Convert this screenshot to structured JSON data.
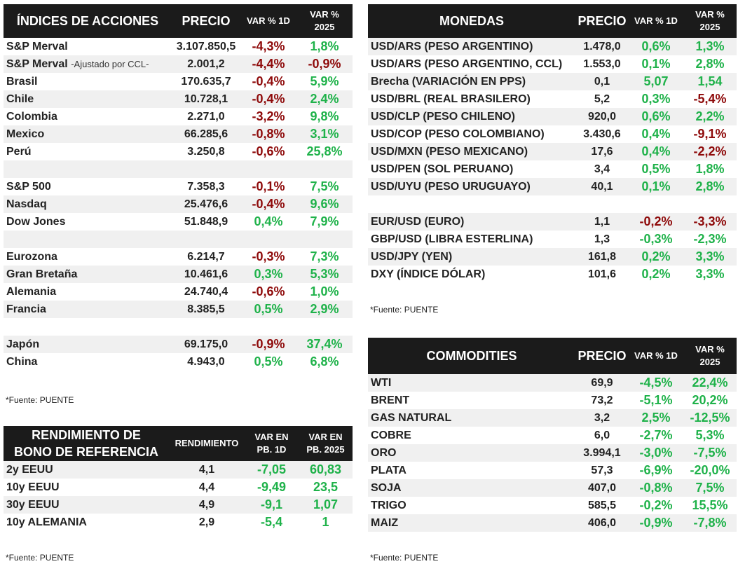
{
  "indices": {
    "headers": [
      "ÍNDICES DE ACCIONES",
      "PRECIO",
      "VAR % 1D",
      "VAR %",
      "2025"
    ],
    "rows": [
      {
        "name": "S&P Merval",
        "sub": "",
        "price": "3.107.850,5",
        "d1": "-4,3%",
        "d1c": "neg",
        "ytd": "1,8%",
        "ytdc": "pos",
        "alt": false
      },
      {
        "name": "S&P Merval",
        "sub": "-Ajustado por CCL-",
        "price": "2.001,2",
        "d1": "-4,4%",
        "d1c": "neg",
        "ytd": "-0,9%",
        "ytdc": "neg",
        "alt": true
      },
      {
        "name": "Brasil",
        "sub": "",
        "price": "170.635,7",
        "d1": "-0,4%",
        "d1c": "neg",
        "ytd": "5,9%",
        "ytdc": "pos",
        "alt": false
      },
      {
        "name": "Chile",
        "sub": "",
        "price": "10.728,1",
        "d1": "-0,4%",
        "d1c": "neg",
        "ytd": "2,4%",
        "ytdc": "pos",
        "alt": true
      },
      {
        "name": "Colombia",
        "sub": "",
        "price": "2.271,0",
        "d1": "-3,2%",
        "d1c": "neg",
        "ytd": "9,8%",
        "ytdc": "pos",
        "alt": false
      },
      {
        "name": "Mexico",
        "sub": "",
        "price": "66.285,6",
        "d1": "-0,8%",
        "d1c": "neg",
        "ytd": "3,1%",
        "ytdc": "pos",
        "alt": true
      },
      {
        "name": "Perú",
        "sub": "",
        "price": "3.250,8",
        "d1": "-0,6%",
        "d1c": "neg",
        "ytd": "25,8%",
        "ytdc": "pos",
        "alt": false
      },
      {
        "blank": true,
        "alt": true
      },
      {
        "name": "S&P 500",
        "sub": "",
        "price": "7.358,3",
        "d1": "-0,1%",
        "d1c": "neg",
        "ytd": "7,5%",
        "ytdc": "pos",
        "alt": false
      },
      {
        "name": "Nasdaq",
        "sub": "",
        "price": "25.476,6",
        "d1": "-0,4%",
        "d1c": "neg",
        "ytd": "9,6%",
        "ytdc": "pos",
        "alt": true
      },
      {
        "name": "Dow Jones",
        "sub": "",
        "price": "51.848,9",
        "d1": "0,4%",
        "d1c": "pos",
        "ytd": "7,9%",
        "ytdc": "pos",
        "alt": false
      },
      {
        "blank": true,
        "alt": true
      },
      {
        "name": "Eurozona",
        "sub": "",
        "price": "6.214,7",
        "d1": "-0,3%",
        "d1c": "neg",
        "ytd": "7,3%",
        "ytdc": "pos",
        "alt": false
      },
      {
        "name": "Gran Bretaña",
        "sub": "",
        "price": "10.461,6",
        "d1": "0,3%",
        "d1c": "pos",
        "ytd": "5,3%",
        "ytdc": "pos",
        "alt": true
      },
      {
        "name": "Alemania",
        "sub": "",
        "price": "24.740,4",
        "d1": "-0,6%",
        "d1c": "neg",
        "ytd": "1,0%",
        "ytdc": "pos",
        "alt": false
      },
      {
        "name": "Francia",
        "sub": "",
        "price": "8.385,5",
        "d1": "0,5%",
        "d1c": "pos",
        "ytd": "2,9%",
        "ytdc": "pos",
        "alt": true
      },
      {
        "blank": true,
        "alt": false
      },
      {
        "name": "Japón",
        "sub": "",
        "price": "69.175,0",
        "d1": "-0,9%",
        "d1c": "neg",
        "ytd": "37,4%",
        "ytdc": "pos",
        "alt": true
      },
      {
        "name": "China",
        "sub": "",
        "price": "4.943,0",
        "d1": "0,5%",
        "d1c": "pos",
        "ytd": "6,8%",
        "ytdc": "pos",
        "alt": false
      }
    ],
    "source": "*Fuente: PUENTE"
  },
  "bonds": {
    "headers": [
      "RENDIMIENTO DE",
      "BONO DE REFERENCIA",
      "RENDIMIENTO",
      "VAR EN",
      "PB. 1D",
      "VAR EN",
      "PB. 2025"
    ],
    "rows": [
      {
        "name": "2y EEUU",
        "yield": "4,1",
        "d1": "-7,05",
        "d1c": "pos",
        "ytd": "60,83",
        "ytdc": "pos",
        "alt": true
      },
      {
        "name": "10y EEUU",
        "yield": "4,4",
        "d1": "-9,49",
        "d1c": "pos",
        "ytd": "23,5",
        "ytdc": "pos",
        "alt": false
      },
      {
        "name": "30y EEUU",
        "yield": "4,9",
        "d1": "-9,1",
        "d1c": "pos",
        "ytd": "1,07",
        "ytdc": "pos",
        "alt": true
      },
      {
        "name": "10y ALEMANIA",
        "yield": "2,9",
        "d1": "-5,4",
        "d1c": "pos",
        "ytd": "1",
        "ytdc": "pos",
        "alt": false
      }
    ],
    "source": "*Fuente: PUENTE"
  },
  "currencies": {
    "headers": [
      "MONEDAS",
      "PRECIO",
      "VAR % 1D",
      "VAR %",
      "2025"
    ],
    "rows": [
      {
        "name": "USD/ARS (PESO ARGENTINO)",
        "price": "1.478,0",
        "d1": "0,6%",
        "d1c": "pos",
        "ytd": "1,3%",
        "ytdc": "pos",
        "alt": true
      },
      {
        "name": "USD/ARS (PESO ARGENTINO, CCL)",
        "price": "1.553,0",
        "d1": "0,1%",
        "d1c": "pos",
        "ytd": "2,8%",
        "ytdc": "pos",
        "alt": false
      },
      {
        "name": "Brecha (VARIACIÓN EN PPS)",
        "price": "0,1",
        "d1": "5,07",
        "d1c": "pos",
        "ytd": "1,54",
        "ytdc": "pos",
        "alt": true
      },
      {
        "name": "USD/BRL (REAL BRASILERO)",
        "price": "5,2",
        "d1": "0,3%",
        "d1c": "pos",
        "ytd": "-5,4%",
        "ytdc": "neg",
        "alt": false
      },
      {
        "name": "USD/CLP (PESO CHILENO)",
        "price": "920,0",
        "d1": "0,6%",
        "d1c": "pos",
        "ytd": "2,2%",
        "ytdc": "pos",
        "alt": true
      },
      {
        "name": "USD/COP (PESO COLOMBIANO)",
        "price": "3.430,6",
        "d1": "0,4%",
        "d1c": "pos",
        "ytd": "-9,1%",
        "ytdc": "neg",
        "alt": false
      },
      {
        "name": "USD/MXN (PESO MEXICANO)",
        "price": "17,6",
        "d1": "0,4%",
        "d1c": "pos",
        "ytd": "-2,2%",
        "ytdc": "neg",
        "alt": true
      },
      {
        "name": "USD/PEN (SOL PERUANO)",
        "price": "3,4",
        "d1": "0,5%",
        "d1c": "pos",
        "ytd": "1,8%",
        "ytdc": "pos",
        "alt": false
      },
      {
        "name": "USD/UYU (PESO URUGUAYO)",
        "price": "40,1",
        "d1": "0,1%",
        "d1c": "pos",
        "ytd": "2,8%",
        "ytdc": "pos",
        "alt": true
      },
      {
        "blank": true,
        "alt": false
      },
      {
        "name": "EUR/USD (EURO)",
        "price": "1,1",
        "d1": "-0,2%",
        "d1c": "neg",
        "ytd": "-3,3%",
        "ytdc": "neg",
        "alt": true
      },
      {
        "name": "GBP/USD (LIBRA ESTERLINA)",
        "price": "1,3",
        "d1": "-0,3%",
        "d1c": "pos",
        "ytd": "-2,3%",
        "ytdc": "pos",
        "alt": false
      },
      {
        "name": "USD/JPY (YEN)",
        "price": "161,8",
        "d1": "0,2%",
        "d1c": "pos",
        "ytd": "3,3%",
        "ytdc": "pos",
        "alt": true
      },
      {
        "name": "DXY (ÍNDICE DÓLAR)",
        "price": "101,6",
        "d1": "0,2%",
        "d1c": "pos",
        "ytd": "3,3%",
        "ytdc": "pos",
        "alt": false
      }
    ],
    "source": "*Fuente: PUENTE"
  },
  "commodities": {
    "headers": [
      "COMMODITIES",
      "PRECIO",
      "VAR % 1D",
      "VAR %",
      "2025"
    ],
    "rows": [
      {
        "name": "WTI",
        "price": "69,9",
        "d1": "-4,5%",
        "d1c": "pos",
        "ytd": "22,4%",
        "ytdc": "pos",
        "alt": true
      },
      {
        "name": "BRENT",
        "price": "73,2",
        "d1": "-5,1%",
        "d1c": "pos",
        "ytd": "20,2%",
        "ytdc": "pos",
        "alt": false
      },
      {
        "name": "GAS NATURAL",
        "price": "3,2",
        "d1": "2,5%",
        "d1c": "pos",
        "ytd": "-12,5%",
        "ytdc": "pos",
        "alt": true
      },
      {
        "name": "COBRE",
        "price": "6,0",
        "d1": "-2,7%",
        "d1c": "pos",
        "ytd": "5,3%",
        "ytdc": "pos",
        "alt": false
      },
      {
        "name": "ORO",
        "price": "3.994,1",
        "d1": "-3,0%",
        "d1c": "pos",
        "ytd": "-7,5%",
        "ytdc": "pos",
        "alt": true
      },
      {
        "name": "PLATA",
        "price": "57,3",
        "d1": "-6,9%",
        "d1c": "pos",
        "ytd": "-20,0%",
        "ytdc": "pos",
        "alt": false
      },
      {
        "name": "SOJA",
        "price": "407,0",
        "d1": "-0,8%",
        "d1c": "pos",
        "ytd": "7,5%",
        "ytdc": "pos",
        "alt": true
      },
      {
        "name": "TRIGO",
        "price": "585,5",
        "d1": "-0,2%",
        "d1c": "pos",
        "ytd": "15,5%",
        "ytdc": "pos",
        "alt": false
      },
      {
        "name": "MAIZ",
        "price": "406,0",
        "d1": "-0,9%",
        "d1c": "pos",
        "ytd": "-7,8%",
        "ytdc": "pos",
        "alt": true
      }
    ],
    "source": "*Fuente: PUENTE"
  },
  "colors": {
    "header_bg": "#1b1b1b",
    "row_alt": "#f0f0f0",
    "positive": "#1fb24a",
    "negative": "#8e0a0a"
  }
}
